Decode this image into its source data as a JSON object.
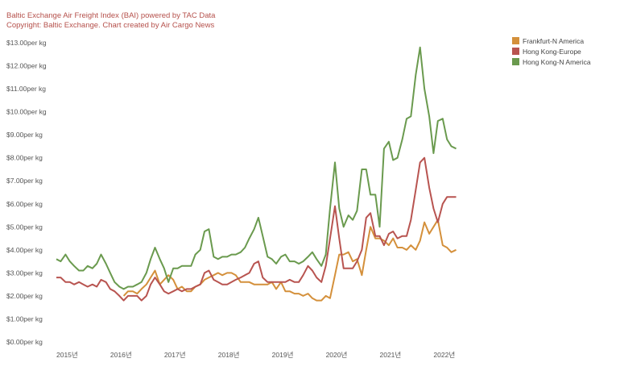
{
  "header": {
    "title": "Baltic Exchange Air Freight Index (BAI) powered by TAC Data",
    "copyright": "Copyright: Baltic Exchange. Chart created by Air Cargo News"
  },
  "chart_data": {
    "type": "line",
    "title": "Baltic Exchange Air Freight Index (BAI) powered by TAC Data",
    "xlabel": "",
    "ylabel": "",
    "ylim": [
      0,
      13
    ],
    "xlim": [
      2015.0,
      2022.95
    ],
    "y_ticks": [
      "$0.00per kg",
      "$1.00per kg",
      "$2.00per kg",
      "$3.00per kg",
      "$4.00per kg",
      "$5.00per kg",
      "$6.00per kg",
      "$7.00per kg",
      "$8.00per kg",
      "$9.00per kg",
      "$10.00per kg",
      "$11.00per kg",
      "$12.00per kg",
      "$13.00per kg"
    ],
    "x_ticks": [
      {
        "label": "2015년",
        "value": 2015
      },
      {
        "label": "2016년",
        "value": 2016
      },
      {
        "label": "2017년",
        "value": 2017
      },
      {
        "label": "2018년",
        "value": 2018
      },
      {
        "label": "2019년",
        "value": 2019
      },
      {
        "label": "2020년",
        "value": 2020
      },
      {
        "label": "2021년",
        "value": 2021
      },
      {
        "label": "2022년",
        "value": 2022
      }
    ],
    "grid": false,
    "legend_position": "right",
    "series": [
      {
        "name": "Frankfurt-N America",
        "color": "#d4903b",
        "points": [
          [
            2016.25,
            2.0
          ],
          [
            2016.33,
            2.2
          ],
          [
            2016.42,
            2.2
          ],
          [
            2016.5,
            2.1
          ],
          [
            2016.58,
            2.3
          ],
          [
            2016.67,
            2.5
          ],
          [
            2016.75,
            2.8
          ],
          [
            2016.83,
            3.1
          ],
          [
            2016.92,
            2.5
          ],
          [
            2017.0,
            2.7
          ],
          [
            2017.08,
            2.9
          ],
          [
            2017.17,
            2.7
          ],
          [
            2017.25,
            2.3
          ],
          [
            2017.33,
            2.4
          ],
          [
            2017.42,
            2.2
          ],
          [
            2017.5,
            2.2
          ],
          [
            2017.58,
            2.4
          ],
          [
            2017.67,
            2.5
          ],
          [
            2017.75,
            2.7
          ],
          [
            2017.83,
            2.8
          ],
          [
            2017.92,
            2.9
          ],
          [
            2018.0,
            3.0
          ],
          [
            2018.08,
            2.9
          ],
          [
            2018.17,
            3.0
          ],
          [
            2018.25,
            3.0
          ],
          [
            2018.33,
            2.9
          ],
          [
            2018.42,
            2.6
          ],
          [
            2018.5,
            2.6
          ],
          [
            2018.58,
            2.6
          ],
          [
            2018.67,
            2.5
          ],
          [
            2018.75,
            2.5
          ],
          [
            2018.83,
            2.5
          ],
          [
            2018.92,
            2.5
          ],
          [
            2019.0,
            2.6
          ],
          [
            2019.08,
            2.3
          ],
          [
            2019.17,
            2.6
          ],
          [
            2019.25,
            2.2
          ],
          [
            2019.33,
            2.2
          ],
          [
            2019.42,
            2.1
          ],
          [
            2019.5,
            2.1
          ],
          [
            2019.58,
            2.0
          ],
          [
            2019.67,
            2.1
          ],
          [
            2019.75,
            1.9
          ],
          [
            2019.83,
            1.8
          ],
          [
            2019.92,
            1.8
          ],
          [
            2020.0,
            2.0
          ],
          [
            2020.08,
            1.9
          ],
          [
            2020.17,
            2.9
          ],
          [
            2020.25,
            3.8
          ],
          [
            2020.33,
            3.8
          ],
          [
            2020.42,
            3.9
          ],
          [
            2020.5,
            3.5
          ],
          [
            2020.58,
            3.6
          ],
          [
            2020.67,
            2.9
          ],
          [
            2020.75,
            4.0
          ],
          [
            2020.83,
            5.0
          ],
          [
            2020.92,
            4.5
          ],
          [
            2021.0,
            4.5
          ],
          [
            2021.08,
            4.4
          ],
          [
            2021.17,
            4.2
          ],
          [
            2021.25,
            4.5
          ],
          [
            2021.33,
            4.1
          ],
          [
            2021.42,
            4.1
          ],
          [
            2021.5,
            4.0
          ],
          [
            2021.58,
            4.2
          ],
          [
            2021.67,
            4.0
          ],
          [
            2021.75,
            4.4
          ],
          [
            2021.83,
            5.2
          ],
          [
            2021.92,
            4.7
          ],
          [
            2022.0,
            5.0
          ],
          [
            2022.08,
            5.3
          ],
          [
            2022.17,
            4.2
          ],
          [
            2022.25,
            4.1
          ],
          [
            2022.33,
            3.9
          ],
          [
            2022.42,
            4.0
          ]
        ]
      },
      {
        "name": "Hong Kong-Europe",
        "color": "#b85450",
        "points": [
          [
            2015.0,
            2.8
          ],
          [
            2015.08,
            2.8
          ],
          [
            2015.17,
            2.6
          ],
          [
            2015.25,
            2.6
          ],
          [
            2015.33,
            2.5
          ],
          [
            2015.42,
            2.6
          ],
          [
            2015.5,
            2.5
          ],
          [
            2015.58,
            2.4
          ],
          [
            2015.67,
            2.5
          ],
          [
            2015.75,
            2.4
          ],
          [
            2015.83,
            2.7
          ],
          [
            2015.92,
            2.6
          ],
          [
            2016.0,
            2.3
          ],
          [
            2016.08,
            2.2
          ],
          [
            2016.17,
            2.0
          ],
          [
            2016.25,
            1.8
          ],
          [
            2016.33,
            2.0
          ],
          [
            2016.42,
            2.0
          ],
          [
            2016.5,
            2.0
          ],
          [
            2016.58,
            1.8
          ],
          [
            2016.67,
            2.0
          ],
          [
            2016.75,
            2.5
          ],
          [
            2016.83,
            2.8
          ],
          [
            2016.92,
            2.5
          ],
          [
            2017.0,
            2.2
          ],
          [
            2017.08,
            2.1
          ],
          [
            2017.17,
            2.2
          ],
          [
            2017.25,
            2.3
          ],
          [
            2017.33,
            2.2
          ],
          [
            2017.42,
            2.3
          ],
          [
            2017.5,
            2.3
          ],
          [
            2017.58,
            2.4
          ],
          [
            2017.67,
            2.5
          ],
          [
            2017.75,
            3.0
          ],
          [
            2017.83,
            3.1
          ],
          [
            2017.92,
            2.7
          ],
          [
            2018.0,
            2.6
          ],
          [
            2018.08,
            2.5
          ],
          [
            2018.17,
            2.5
          ],
          [
            2018.25,
            2.6
          ],
          [
            2018.33,
            2.7
          ],
          [
            2018.42,
            2.8
          ],
          [
            2018.5,
            2.9
          ],
          [
            2018.58,
            3.0
          ],
          [
            2018.67,
            3.4
          ],
          [
            2018.75,
            3.5
          ],
          [
            2018.83,
            2.8
          ],
          [
            2018.92,
            2.6
          ],
          [
            2019.0,
            2.6
          ],
          [
            2019.08,
            2.6
          ],
          [
            2019.17,
            2.6
          ],
          [
            2019.25,
            2.6
          ],
          [
            2019.33,
            2.7
          ],
          [
            2019.42,
            2.6
          ],
          [
            2019.5,
            2.6
          ],
          [
            2019.58,
            2.9
          ],
          [
            2019.67,
            3.3
          ],
          [
            2019.75,
            3.1
          ],
          [
            2019.83,
            2.8
          ],
          [
            2019.92,
            2.6
          ],
          [
            2020.0,
            3.3
          ],
          [
            2020.08,
            4.5
          ],
          [
            2020.17,
            5.9
          ],
          [
            2020.25,
            4.5
          ],
          [
            2020.33,
            3.2
          ],
          [
            2020.42,
            3.2
          ],
          [
            2020.5,
            3.2
          ],
          [
            2020.58,
            3.5
          ],
          [
            2020.67,
            4.0
          ],
          [
            2020.75,
            5.4
          ],
          [
            2020.83,
            5.6
          ],
          [
            2020.92,
            4.6
          ],
          [
            2021.0,
            4.6
          ],
          [
            2021.08,
            4.2
          ],
          [
            2021.17,
            4.7
          ],
          [
            2021.25,
            4.8
          ],
          [
            2021.33,
            4.5
          ],
          [
            2021.42,
            4.6
          ],
          [
            2021.5,
            4.6
          ],
          [
            2021.58,
            5.3
          ],
          [
            2021.67,
            6.6
          ],
          [
            2021.75,
            7.8
          ],
          [
            2021.83,
            8.0
          ],
          [
            2021.92,
            6.7
          ],
          [
            2022.0,
            5.8
          ],
          [
            2022.08,
            5.2
          ],
          [
            2022.17,
            6.0
          ],
          [
            2022.25,
            6.3
          ],
          [
            2022.33,
            6.3
          ],
          [
            2022.42,
            6.3
          ]
        ]
      },
      {
        "name": "Hong Kong-N America",
        "color": "#6a9a4e",
        "points": [
          [
            2015.0,
            3.6
          ],
          [
            2015.08,
            3.5
          ],
          [
            2015.17,
            3.8
          ],
          [
            2015.25,
            3.5
          ],
          [
            2015.33,
            3.3
          ],
          [
            2015.42,
            3.1
          ],
          [
            2015.5,
            3.1
          ],
          [
            2015.58,
            3.3
          ],
          [
            2015.67,
            3.2
          ],
          [
            2015.75,
            3.4
          ],
          [
            2015.83,
            3.8
          ],
          [
            2015.92,
            3.4
          ],
          [
            2016.0,
            3.0
          ],
          [
            2016.08,
            2.6
          ],
          [
            2016.17,
            2.4
          ],
          [
            2016.25,
            2.3
          ],
          [
            2016.33,
            2.4
          ],
          [
            2016.42,
            2.4
          ],
          [
            2016.5,
            2.5
          ],
          [
            2016.58,
            2.6
          ],
          [
            2016.67,
            3.0
          ],
          [
            2016.75,
            3.6
          ],
          [
            2016.83,
            4.1
          ],
          [
            2016.92,
            3.6
          ],
          [
            2017.0,
            3.2
          ],
          [
            2017.08,
            2.6
          ],
          [
            2017.17,
            3.2
          ],
          [
            2017.25,
            3.2
          ],
          [
            2017.33,
            3.3
          ],
          [
            2017.42,
            3.3
          ],
          [
            2017.5,
            3.3
          ],
          [
            2017.58,
            3.8
          ],
          [
            2017.67,
            4.0
          ],
          [
            2017.75,
            4.8
          ],
          [
            2017.83,
            4.9
          ],
          [
            2017.92,
            3.7
          ],
          [
            2018.0,
            3.6
          ],
          [
            2018.08,
            3.7
          ],
          [
            2018.17,
            3.7
          ],
          [
            2018.25,
            3.8
          ],
          [
            2018.33,
            3.8
          ],
          [
            2018.42,
            3.9
          ],
          [
            2018.5,
            4.1
          ],
          [
            2018.58,
            4.5
          ],
          [
            2018.67,
            4.9
          ],
          [
            2018.75,
            5.4
          ],
          [
            2018.83,
            4.6
          ],
          [
            2018.92,
            3.7
          ],
          [
            2019.0,
            3.6
          ],
          [
            2019.08,
            3.4
          ],
          [
            2019.17,
            3.7
          ],
          [
            2019.25,
            3.8
          ],
          [
            2019.33,
            3.5
          ],
          [
            2019.42,
            3.5
          ],
          [
            2019.5,
            3.4
          ],
          [
            2019.58,
            3.5
          ],
          [
            2019.67,
            3.7
          ],
          [
            2019.75,
            3.9
          ],
          [
            2019.83,
            3.6
          ],
          [
            2019.92,
            3.3
          ],
          [
            2020.0,
            3.8
          ],
          [
            2020.08,
            5.8
          ],
          [
            2020.17,
            7.8
          ],
          [
            2020.25,
            5.8
          ],
          [
            2020.33,
            5.0
          ],
          [
            2020.42,
            5.5
          ],
          [
            2020.5,
            5.3
          ],
          [
            2020.58,
            5.7
          ],
          [
            2020.67,
            7.5
          ],
          [
            2020.75,
            7.5
          ],
          [
            2020.83,
            6.4
          ],
          [
            2020.92,
            6.4
          ],
          [
            2021.0,
            5.0
          ],
          [
            2021.08,
            8.4
          ],
          [
            2021.17,
            8.7
          ],
          [
            2021.25,
            7.9
          ],
          [
            2021.33,
            8.0
          ],
          [
            2021.42,
            8.8
          ],
          [
            2021.5,
            9.7
          ],
          [
            2021.58,
            9.8
          ],
          [
            2021.67,
            11.6
          ],
          [
            2021.75,
            12.8
          ],
          [
            2021.83,
            11.0
          ],
          [
            2021.92,
            9.8
          ],
          [
            2022.0,
            8.2
          ],
          [
            2022.08,
            9.6
          ],
          [
            2022.17,
            9.7
          ],
          [
            2022.25,
            8.8
          ],
          [
            2022.33,
            8.5
          ],
          [
            2022.42,
            8.4
          ]
        ]
      }
    ]
  }
}
